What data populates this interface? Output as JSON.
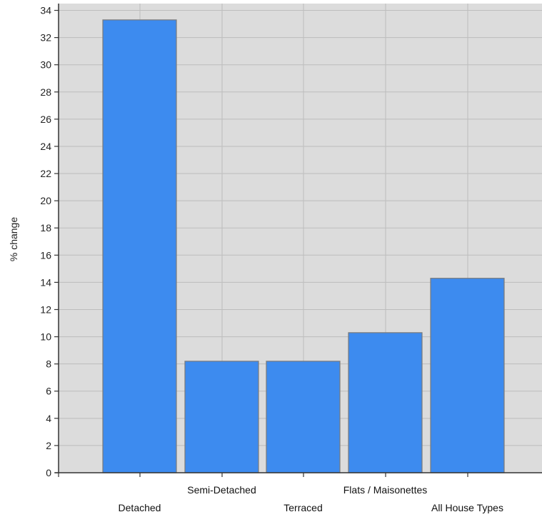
{
  "chart_data": {
    "type": "bar",
    "title": "",
    "xlabel": "",
    "ylabel": "% change",
    "categories": [
      "Detached",
      "Semi-Detached",
      "Terraced",
      "Flats / Maisonettes",
      "All House Types"
    ],
    "values": [
      33.3,
      8.2,
      8.2,
      10.3,
      14.3
    ],
    "ylim": [
      0,
      34.5
    ],
    "yticks": [
      0,
      2,
      4,
      6,
      8,
      10,
      12,
      14,
      16,
      18,
      20,
      22,
      24,
      26,
      28,
      30,
      32,
      34
    ],
    "grid": true,
    "legend": "none",
    "colors": {
      "bar": "#3d8bef",
      "bar_edge": "#7a7a7a",
      "plot_bg": "#dcdcdc",
      "grid": "#bdbdbd",
      "axis": "#333333"
    }
  }
}
